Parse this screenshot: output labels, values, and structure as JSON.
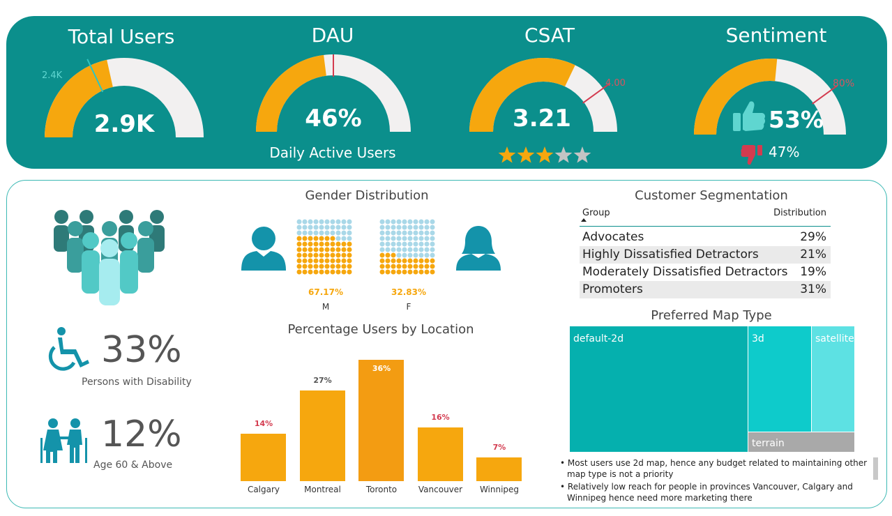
{
  "kpis": {
    "total_users": {
      "title": "Total Users",
      "value": "2.9K",
      "target_label": "2.4K",
      "fill_fraction": 0.43,
      "target_fraction": 0.36
    },
    "dau": {
      "title": "DAU",
      "value": "46%",
      "subtitle": "Daily Active Users",
      "fill_fraction": 0.46,
      "target_fraction": 0.5
    },
    "csat": {
      "title": "CSAT",
      "value": "3.21",
      "target_label": "4.00",
      "fill_fraction": 0.642,
      "target_fraction": 0.8,
      "stars_filled": 3,
      "stars_total": 5
    },
    "sentiment": {
      "title": "Sentiment",
      "positive_value": "53%",
      "negative_value": "47%",
      "target_label": "80%",
      "fill_fraction": 0.53,
      "target_fraction": 0.8
    }
  },
  "people": {
    "disability_pct": "33%",
    "disability_label": "Persons with Disability",
    "senior_pct": "12%",
    "senior_label": "Age 60 & Above"
  },
  "gender": {
    "title": "Gender Distribution",
    "male_pct": "67.17%",
    "male_label": "M",
    "male_fraction": 0.6717,
    "female_pct": "32.83%",
    "female_label": "F",
    "female_fraction": 0.3283
  },
  "location": {
    "title": "Percentage Users by Location"
  },
  "chart_data": {
    "type": "bar",
    "title": "Percentage Users by Location",
    "categories": [
      "Calgary",
      "Montreal",
      "Toronto",
      "Vancouver",
      "Winnipeg"
    ],
    "values": [
      14,
      27,
      36,
      16,
      7
    ],
    "value_labels": [
      "14%",
      "27%",
      "36%",
      "16%",
      "7%"
    ],
    "ylim": [
      0,
      36
    ]
  },
  "segmentation": {
    "title": "Customer Segmentation",
    "col_group": "Group",
    "col_dist": "Distribution",
    "rows": [
      {
        "group": "Advocates",
        "dist": "29%"
      },
      {
        "group": "Highly Dissatisfied Detractors",
        "dist": "21%"
      },
      {
        "group": "Moderately Dissatisfied Detractors",
        "dist": "19%"
      },
      {
        "group": "Promoters",
        "dist": "31%"
      }
    ]
  },
  "map_type": {
    "title": "Preferred Map Type",
    "items": [
      {
        "label": "default-2d",
        "color": "#05b0ae"
      },
      {
        "label": "3d",
        "color": "#0ecbcb"
      },
      {
        "label": "satellite",
        "color": "#5de1e3"
      },
      {
        "label": "terrain",
        "color": "#a9a9a9"
      }
    ]
  },
  "notes": [
    "Most users use 2d map, hence any budget related to maintaining other map type is not a priority",
    "Relatively low reach for people in provinces Vancouver, Calgary and Winnipeg hence need more marketing there"
  ],
  "colors": {
    "teal": "#0b8f8c",
    "orange": "#f6a70e",
    "gauge_bg": "#f2f0f0",
    "target": "#d33b4f",
    "accent_teal": "#1493aa"
  }
}
